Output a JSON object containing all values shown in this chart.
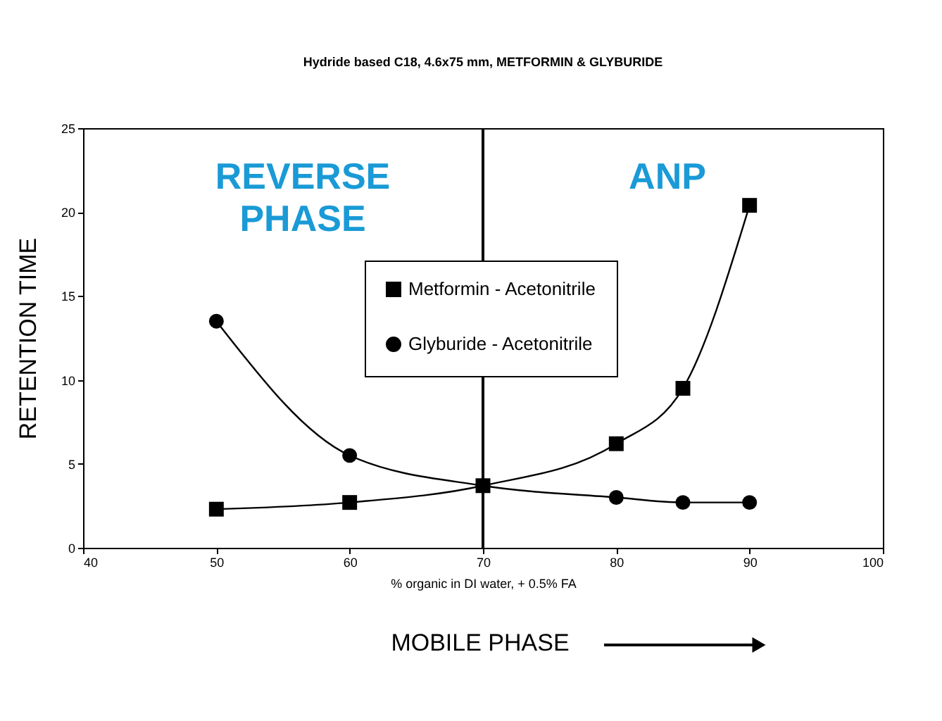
{
  "chart_data": {
    "type": "line",
    "title": "Hydride based C18, 4.6x75 mm, METFORMIN & GLYBURIDE",
    "xlabel": "% organic in DI water, + 0.5% FA",
    "ylabel": "RETENTION TIME",
    "x": [
      50,
      60,
      70,
      80,
      85,
      90
    ],
    "series": [
      {
        "name": "Metformin - Acetonitrile",
        "color": "#000000",
        "marker": "square",
        "values": [
          2.3,
          2.7,
          3.7,
          6.2,
          9.5,
          20.4
        ]
      },
      {
        "name": "Glyburide - Acetonitrile",
        "color": "#000000",
        "marker": "circle",
        "values": [
          13.5,
          5.5,
          3.7,
          3.0,
          2.7,
          2.7
        ]
      }
    ],
    "xlim": [
      40,
      100
    ],
    "xticks": [
      40,
      50,
      60,
      70,
      80,
      90,
      100
    ],
    "ylim": [
      0,
      25
    ],
    "yticks": [
      0,
      5,
      10,
      15,
      20,
      25
    ],
    "ref_lines": [
      {
        "axis": "x",
        "value": 70,
        "color": "#000000"
      }
    ],
    "annotations": [
      "REVERSE PHASE",
      "ANP",
      "MOBILE PHASE"
    ],
    "grid": false,
    "legend": "top",
    "line_style": "solid"
  }
}
